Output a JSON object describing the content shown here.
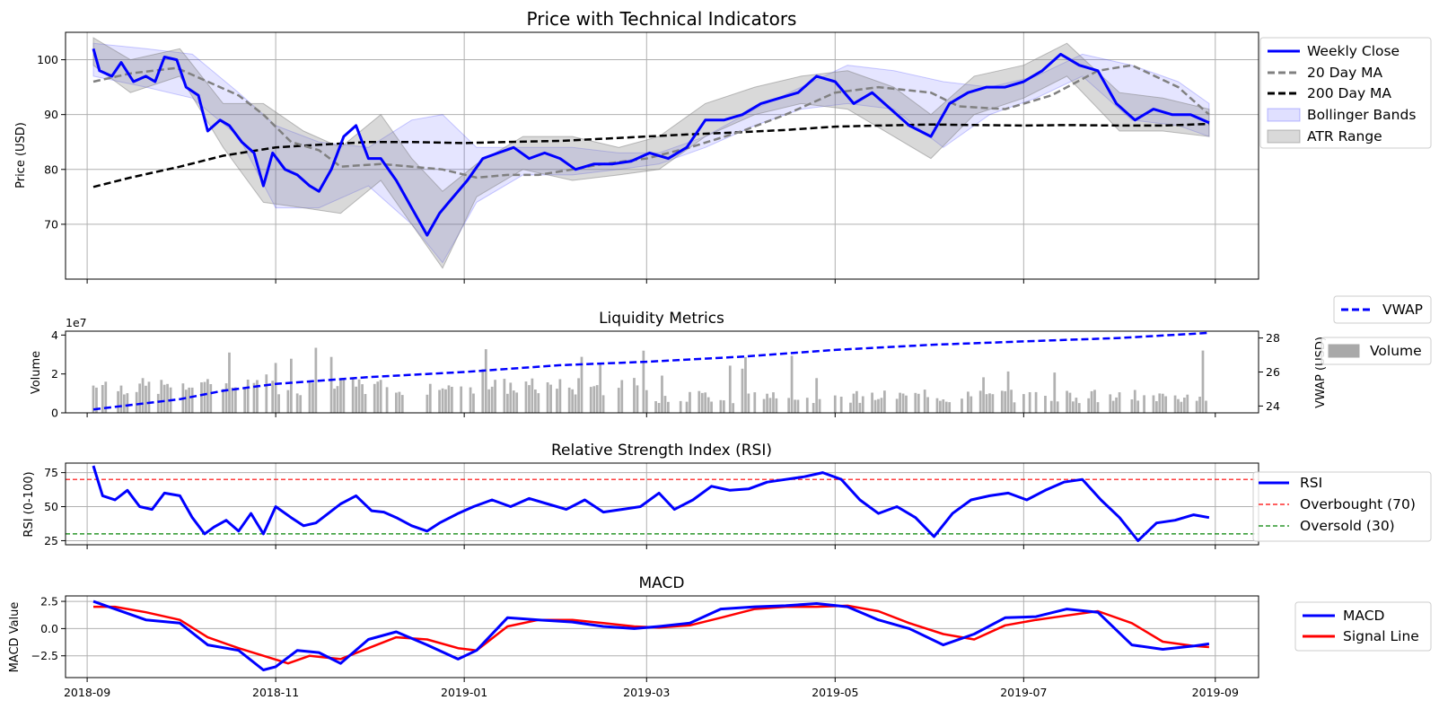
{
  "colors": {
    "close": "#0000ff",
    "ma20": "#808080",
    "ma200": "#000000",
    "bollinger": "#0000ff",
    "atr": "#808080",
    "volume": "#a9a9a9",
    "vwap": "#0000ff",
    "rsi": "#0000ff",
    "overbought": "#ff0000",
    "oversold": "#008000",
    "macd": "#0000ff",
    "signal": "#ff0000"
  },
  "x_ticks": [
    "2018-09",
    "2018-11",
    "2019-01",
    "2019-03",
    "2019-05",
    "2019-07",
    "2019-09"
  ],
  "chart_data": [
    {
      "id": "price",
      "type": "line",
      "title": "Price with Technical Indicators",
      "xlabel": "",
      "ylabel": "Price (USD)",
      "ylim": [
        60,
        105
      ],
      "yticks": [
        70,
        80,
        90,
        100
      ],
      "xlim": [
        "2018-08-25",
        "2019-09-15"
      ],
      "grid": true,
      "legend_position": "outside-right",
      "legend": [
        "Weekly Close",
        "20 Day MA",
        "200 Day MA",
        "Bollinger Bands",
        "ATR Range"
      ],
      "series": [
        {
          "name": "Weekly Close",
          "style": "solid",
          "x": [
            "2018-09-03",
            "2018-09-05",
            "2018-09-09",
            "2018-09-12",
            "2018-09-16",
            "2018-09-20",
            "2018-09-23",
            "2018-09-26",
            "2018-09-30",
            "2018-10-03",
            "2018-10-07",
            "2018-10-10",
            "2018-10-14",
            "2018-10-17",
            "2018-10-21",
            "2018-10-25",
            "2018-10-28",
            "2018-10-31",
            "2018-11-04",
            "2018-11-08",
            "2018-11-12",
            "2018-11-15",
            "2018-11-19",
            "2018-11-23",
            "2018-11-27",
            "2018-12-01",
            "2018-12-05",
            "2018-12-10",
            "2018-12-15",
            "2018-12-20",
            "2018-12-24",
            "2018-12-27",
            "2019-01-02",
            "2019-01-07",
            "2019-01-12",
            "2019-01-17",
            "2019-01-22",
            "2019-01-27",
            "2019-02-01",
            "2019-02-06",
            "2019-02-12",
            "2019-02-18",
            "2019-02-24",
            "2019-03-02",
            "2019-03-08",
            "2019-03-14",
            "2019-03-20",
            "2019-03-26",
            "2019-04-01",
            "2019-04-07",
            "2019-04-13",
            "2019-04-19",
            "2019-04-25",
            "2019-05-01",
            "2019-05-07",
            "2019-05-13",
            "2019-05-19",
            "2019-05-25",
            "2019-06-01",
            "2019-06-07",
            "2019-06-13",
            "2019-06-19",
            "2019-06-25",
            "2019-07-01",
            "2019-07-07",
            "2019-07-13",
            "2019-07-19",
            "2019-07-25",
            "2019-07-31",
            "2019-08-06",
            "2019-08-12",
            "2019-08-18",
            "2019-08-24",
            "2019-08-30"
          ],
          "y": [
            102,
            98,
            97,
            99.5,
            96,
            97,
            96,
            100.5,
            100,
            95,
            93.5,
            87,
            89,
            88,
            85,
            83,
            77,
            83,
            80,
            79,
            77,
            76,
            80,
            86,
            88,
            82,
            82,
            78,
            73,
            68,
            72,
            74,
            78,
            82,
            83,
            84,
            82,
            83,
            82,
            80,
            81,
            81,
            81.5,
            83,
            82,
            84,
            89,
            89,
            90,
            92,
            93,
            94,
            97,
            96,
            92,
            94,
            91,
            88,
            86,
            92,
            94,
            95,
            95,
            96,
            98,
            101,
            99,
            98,
            92,
            89,
            91,
            90,
            90,
            88.5
          ]
        },
        {
          "name": "20 Day MA",
          "style": "dashed",
          "x": [
            "2018-09-03",
            "2018-09-15",
            "2018-09-30",
            "2018-10-10",
            "2018-10-20",
            "2018-10-28",
            "2018-11-06",
            "2018-11-15",
            "2018-11-22",
            "2018-12-05",
            "2018-12-15",
            "2018-12-25",
            "2019-01-05",
            "2019-01-15",
            "2019-01-25",
            "2019-02-05",
            "2019-02-15",
            "2019-03-01",
            "2019-03-15",
            "2019-04-01",
            "2019-04-15",
            "2019-05-01",
            "2019-05-15",
            "2019-06-01",
            "2019-06-10",
            "2019-06-25",
            "2019-07-10",
            "2019-07-25",
            "2019-08-05",
            "2019-08-20",
            "2019-08-30"
          ],
          "y": [
            96,
            97.5,
            98.5,
            96,
            93.5,
            90,
            85,
            83.5,
            80.5,
            81,
            80.5,
            80,
            78.5,
            79,
            79,
            80,
            81,
            82,
            84,
            87,
            90,
            94,
            95,
            94,
            91.5,
            91,
            93.5,
            98,
            99,
            95,
            90
          ]
        },
        {
          "name": "200 Day MA",
          "style": "dashed",
          "x": [
            "2018-09-03",
            "2018-09-15",
            "2018-10-01",
            "2018-10-15",
            "2018-11-01",
            "2018-11-15",
            "2018-12-01",
            "2018-12-15",
            "2019-01-01",
            "2019-01-15",
            "2019-02-01",
            "2019-02-15",
            "2019-03-01",
            "2019-03-15",
            "2019-04-01",
            "2019-04-15",
            "2019-05-01",
            "2019-05-15",
            "2019-06-01",
            "2019-06-15",
            "2019-07-01",
            "2019-07-15",
            "2019-08-01",
            "2019-08-15",
            "2019-08-30"
          ],
          "y": [
            76.8,
            78.5,
            80.5,
            82.5,
            84,
            84.5,
            85,
            85,
            84.8,
            85,
            85.2,
            85.6,
            86,
            86.4,
            86.8,
            87.2,
            87.8,
            88,
            88.2,
            88.1,
            88,
            88.1,
            88,
            88,
            88.3
          ]
        },
        {
          "name": "Bollinger Bands",
          "type": "band",
          "x": [
            "2018-09-03",
            "2018-09-20",
            "2018-10-05",
            "2018-10-20",
            "2018-11-01",
            "2018-11-15",
            "2018-12-01",
            "2018-12-15",
            "2018-12-25",
            "2019-01-05",
            "2019-01-20",
            "2019-02-05",
            "2019-02-20",
            "2019-03-05",
            "2019-03-20",
            "2019-04-05",
            "2019-04-20",
            "2019-05-05",
            "2019-05-20",
            "2019-06-05",
            "2019-06-20",
            "2019-07-05",
            "2019-07-20",
            "2019-08-05",
            "2019-08-20",
            "2019-08-30"
          ],
          "upper": [
            103,
            102,
            101,
            94,
            88,
            85,
            84,
            89,
            90,
            84,
            84,
            84,
            83,
            83,
            86,
            91,
            95,
            99,
            98,
            96,
            95,
            97,
            101,
            99,
            96,
            92
          ],
          "lower": [
            97,
            95,
            93,
            86,
            73,
            73,
            77,
            70,
            63,
            74,
            79,
            79,
            80,
            81,
            84,
            88,
            91,
            92,
            91,
            84,
            90,
            93,
            97,
            89,
            88,
            86
          ]
        },
        {
          "name": "ATR Range",
          "type": "band",
          "x": [
            "2018-09-03",
            "2018-09-15",
            "2018-10-01",
            "2018-10-15",
            "2018-10-28",
            "2018-11-10",
            "2018-11-22",
            "2018-12-05",
            "2018-12-15",
            "2018-12-25",
            "2019-01-05",
            "2019-01-20",
            "2019-02-05",
            "2019-02-20",
            "2019-03-05",
            "2019-03-20",
            "2019-04-05",
            "2019-04-20",
            "2019-05-05",
            "2019-05-20",
            "2019-06-01",
            "2019-06-15",
            "2019-07-01",
            "2019-07-15",
            "2019-08-01",
            "2019-08-15",
            "2019-08-30"
          ],
          "upper": [
            104,
            100,
            102,
            92,
            92,
            87,
            84,
            90,
            82,
            76,
            81,
            86,
            86,
            84,
            86,
            92,
            95,
            97,
            98,
            95,
            90,
            97,
            99,
            103,
            94,
            93,
            91
          ],
          "lower": [
            99,
            94,
            97,
            84,
            74,
            73,
            72,
            78,
            70,
            62,
            75,
            80,
            78,
            79,
            80,
            86,
            90,
            92,
            91,
            86,
            82,
            90,
            93,
            97,
            87,
            87,
            86
          ]
        }
      ]
    },
    {
      "id": "liquidity",
      "type": "bar",
      "title": "Liquidity Metrics",
      "ylabel": "Volume",
      "y_exponent": "1e7",
      "ylim": [
        0,
        4.2
      ],
      "yticks": [
        0,
        2,
        4
      ],
      "secondary_ylabel": "VWAP (USD)",
      "secondary_ylim": [
        23.6,
        28.4
      ],
      "secondary_yticks": [
        24,
        26,
        28
      ],
      "legend": [
        "VWAP",
        "Volume"
      ],
      "vwap": {
        "name": "VWAP",
        "x": [
          "2018-09-03",
          "2018-10-01",
          "2018-10-15",
          "2018-11-01",
          "2018-12-01",
          "2019-01-01",
          "2019-02-01",
          "2019-03-01",
          "2019-04-01",
          "2019-05-01",
          "2019-06-01",
          "2019-07-01",
          "2019-08-01",
          "2019-08-30"
        ],
        "y": [
          23.8,
          24.4,
          24.9,
          25.3,
          25.7,
          26.0,
          26.4,
          26.6,
          26.9,
          27.3,
          27.6,
          27.8,
          28.0,
          28.3
        ]
      },
      "volume": {
        "name": "Volume",
        "start": "2018-09-03",
        "end": "2019-08-30",
        "unit_scale": "1e7"
      }
    },
    {
      "id": "rsi",
      "type": "line",
      "title": "Relative Strength Index (RSI)",
      "ylabel": "RSI (0-100)",
      "ylim": [
        22,
        82
      ],
      "yticks": [
        25,
        50,
        75
      ],
      "legend": [
        "RSI",
        "Overbought (70)",
        "Oversold (30)"
      ],
      "thresholds": {
        "overbought": 70,
        "oversold": 30
      },
      "series": [
        {
          "name": "RSI",
          "x": [
            "2018-09-03",
            "2018-09-06",
            "2018-09-10",
            "2018-09-14",
            "2018-09-18",
            "2018-09-22",
            "2018-09-26",
            "2018-10-01",
            "2018-10-05",
            "2018-10-09",
            "2018-10-12",
            "2018-10-16",
            "2018-10-20",
            "2018-10-24",
            "2018-10-28",
            "2018-11-01",
            "2018-11-06",
            "2018-11-10",
            "2018-11-14",
            "2018-11-18",
            "2018-11-22",
            "2018-11-27",
            "2018-12-02",
            "2018-12-06",
            "2018-12-10",
            "2018-12-15",
            "2018-12-20",
            "2018-12-24",
            "2018-12-30",
            "2019-01-04",
            "2019-01-10",
            "2019-01-16",
            "2019-01-22",
            "2019-01-28",
            "2019-02-03",
            "2019-02-09",
            "2019-02-15",
            "2019-02-21",
            "2019-02-27",
            "2019-03-05",
            "2019-03-10",
            "2019-03-16",
            "2019-03-22",
            "2019-03-28",
            "2019-04-03",
            "2019-04-09",
            "2019-04-15",
            "2019-04-21",
            "2019-04-27",
            "2019-05-03",
            "2019-05-09",
            "2019-05-15",
            "2019-05-21",
            "2019-05-27",
            "2019-06-02",
            "2019-06-08",
            "2019-06-14",
            "2019-06-20",
            "2019-06-26",
            "2019-07-02",
            "2019-07-08",
            "2019-07-14",
            "2019-07-20",
            "2019-07-26",
            "2019-08-01",
            "2019-08-07",
            "2019-08-13",
            "2019-08-19",
            "2019-08-25",
            "2019-08-30"
          ],
          "y": [
            80,
            58,
            55,
            62,
            50,
            48,
            60,
            58,
            42,
            30,
            35,
            40,
            32,
            45,
            30,
            50,
            42,
            36,
            38,
            45,
            52,
            58,
            47,
            46,
            42,
            36,
            32,
            38,
            45,
            50,
            55,
            50,
            56,
            52,
            48,
            55,
            46,
            48,
            50,
            60,
            48,
            55,
            65,
            62,
            63,
            68,
            70,
            72,
            75,
            70,
            55,
            45,
            50,
            42,
            28,
            45,
            55,
            58,
            60,
            55,
            62,
            68,
            70,
            55,
            42,
            25,
            38,
            40,
            44,
            42
          ]
        }
      ]
    },
    {
      "id": "macd",
      "type": "line",
      "title": "MACD",
      "ylabel": "MACD Value",
      "ylim": [
        -4.5,
        3.0
      ],
      "yticks": [
        -2.5,
        0.0,
        2.5
      ],
      "ytick_labels": [
        "−2.5",
        "0.0",
        "2.5"
      ],
      "legend": [
        "MACD",
        "Signal Line"
      ],
      "series": [
        {
          "name": "MACD",
          "x": [
            "2018-09-03",
            "2018-09-10",
            "2018-09-20",
            "2018-10-01",
            "2018-10-10",
            "2018-10-20",
            "2018-10-28",
            "2018-11-01",
            "2018-11-08",
            "2018-11-15",
            "2018-11-22",
            "2018-12-01",
            "2018-12-10",
            "2018-12-20",
            "2018-12-30",
            "2019-01-05",
            "2019-01-15",
            "2019-01-25",
            "2019-02-05",
            "2019-02-15",
            "2019-02-25",
            "2019-03-05",
            "2019-03-15",
            "2019-03-25",
            "2019-04-05",
            "2019-04-15",
            "2019-04-25",
            "2019-05-05",
            "2019-05-15",
            "2019-05-25",
            "2019-06-05",
            "2019-06-15",
            "2019-06-25",
            "2019-07-05",
            "2019-07-15",
            "2019-07-25",
            "2019-08-05",
            "2019-08-15",
            "2019-08-25",
            "2019-08-30"
          ],
          "y": [
            2.5,
            1.8,
            0.8,
            0.5,
            -1.5,
            -2.0,
            -3.8,
            -3.5,
            -2.0,
            -2.2,
            -3.2,
            -1.0,
            -0.3,
            -1.5,
            -2.8,
            -2.0,
            1.0,
            0.8,
            0.6,
            0.2,
            0.0,
            0.2,
            0.5,
            1.8,
            2.0,
            2.1,
            2.3,
            2.0,
            0.8,
            0.0,
            -1.5,
            -0.5,
            1.0,
            1.1,
            1.8,
            1.5,
            -1.5,
            -1.9,
            -1.6,
            -1.4
          ]
        },
        {
          "name": "Signal Line",
          "x": [
            "2018-09-03",
            "2018-09-10",
            "2018-09-20",
            "2018-10-01",
            "2018-10-10",
            "2018-10-20",
            "2018-10-28",
            "2018-11-05",
            "2018-11-12",
            "2018-11-22",
            "2018-12-01",
            "2018-12-10",
            "2018-12-20",
            "2018-12-30",
            "2019-01-05",
            "2019-01-15",
            "2019-01-25",
            "2019-02-05",
            "2019-02-15",
            "2019-02-25",
            "2019-03-05",
            "2019-03-15",
            "2019-03-25",
            "2019-04-05",
            "2019-04-15",
            "2019-04-25",
            "2019-05-05",
            "2019-05-15",
            "2019-05-25",
            "2019-06-05",
            "2019-06-15",
            "2019-06-25",
            "2019-07-05",
            "2019-07-15",
            "2019-07-25",
            "2019-08-05",
            "2019-08-15",
            "2019-08-25",
            "2019-08-30"
          ],
          "y": [
            2.0,
            2.0,
            1.5,
            0.8,
            -0.8,
            -1.8,
            -2.5,
            -3.2,
            -2.5,
            -2.8,
            -1.8,
            -0.8,
            -1.0,
            -1.8,
            -2.0,
            0.2,
            0.8,
            0.8,
            0.5,
            0.2,
            0.1,
            0.3,
            1.0,
            1.8,
            2.0,
            2.0,
            2.1,
            1.6,
            0.5,
            -0.5,
            -1.0,
            0.3,
            0.8,
            1.2,
            1.6,
            0.5,
            -1.2,
            -1.6,
            -1.7
          ]
        }
      ]
    }
  ]
}
